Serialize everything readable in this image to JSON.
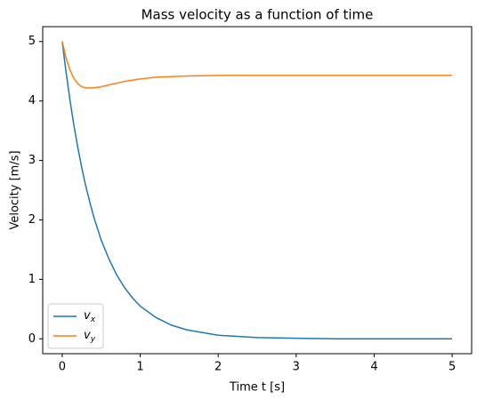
{
  "chart_data": {
    "type": "line",
    "title": "Mass velocity as a function of time",
    "xlabel": "Time t [s]",
    "ylabel": "Velocity [m/s]",
    "x": [
      0,
      0.05,
      0.1,
      0.15,
      0.2,
      0.25,
      0.3,
      0.35,
      0.4,
      0.5,
      0.6,
      0.7,
      0.8,
      0.9,
      1.0,
      1.2,
      1.4,
      1.6,
      2.0,
      2.5,
      3.0,
      3.5,
      4.0,
      4.5,
      5.0
    ],
    "series": [
      {
        "name": "v_x",
        "color": "#1f77b4",
        "values": [
          5.0,
          4.48,
          4.01,
          3.59,
          3.22,
          2.88,
          2.58,
          2.32,
          2.07,
          1.66,
          1.34,
          1.07,
          0.86,
          0.69,
          0.55,
          0.36,
          0.23,
          0.15,
          0.06,
          0.02,
          0.01,
          0,
          0,
          0,
          0
        ]
      },
      {
        "name": "v_y",
        "color": "#ff7f0e",
        "values": [
          5.0,
          4.72,
          4.52,
          4.38,
          4.29,
          4.24,
          4.22,
          4.22,
          4.22,
          4.24,
          4.27,
          4.3,
          4.33,
          4.35,
          4.37,
          4.4,
          4.41,
          4.42,
          4.43,
          4.43,
          4.43,
          4.43,
          4.43,
          4.43,
          4.43
        ]
      }
    ],
    "xlim": [
      -0.25,
      5.25
    ],
    "ylim": [
      -0.25,
      5.25
    ],
    "xticks": [
      0,
      1,
      2,
      3,
      4,
      5
    ],
    "yticks": [
      0,
      1,
      2,
      3,
      4,
      5
    ],
    "legend": "lower left"
  }
}
